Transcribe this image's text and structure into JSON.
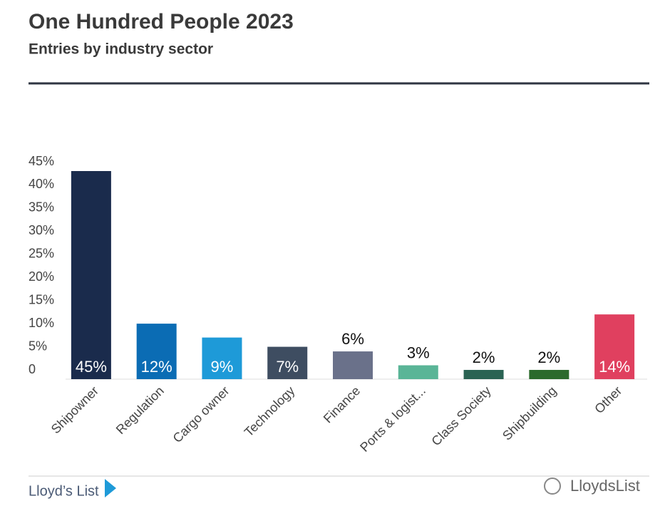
{
  "chart_data": {
    "type": "bar",
    "title": "One Hundred People 2023",
    "subtitle": "Entries by industry sector",
    "categories": [
      "Shipowner",
      "Regulation",
      "Cargo owner",
      "Technology",
      "Finance",
      "Ports & logist...",
      "Class Society",
      "Shipbuilding",
      "Other"
    ],
    "values": [
      45,
      12,
      9,
      7,
      6,
      3,
      2,
      2,
      14
    ],
    "value_labels": [
      "45%",
      "12%",
      "9%",
      "7%",
      "6%",
      "3%",
      "2%",
      "2%",
      "14%"
    ],
    "colors": [
      "#1a2b4c",
      "#0b6cb4",
      "#1e9ad8",
      "#3e4d61",
      "#6a718a",
      "#5ab597",
      "#2a6353",
      "#2b6a2c",
      "#e0405f"
    ],
    "ylim": [
      0,
      45
    ],
    "yticks": [
      0,
      {
        "value": 5,
        "label": "5%"
      },
      {
        "value": 10,
        "label": "10%"
      },
      {
        "value": 15,
        "label": "15%"
      },
      {
        "value": 20,
        "label": "20%"
      },
      {
        "value": 25,
        "label": "25%"
      },
      {
        "value": 30,
        "label": "30%"
      },
      {
        "value": 35,
        "label": "35%"
      },
      {
        "value": 40,
        "label": "40%"
      },
      {
        "value": 45,
        "label": "45%"
      }
    ],
    "grid": false
  },
  "footer": {
    "brand": "Lloyd’s List",
    "watermark": "LloydsList"
  }
}
